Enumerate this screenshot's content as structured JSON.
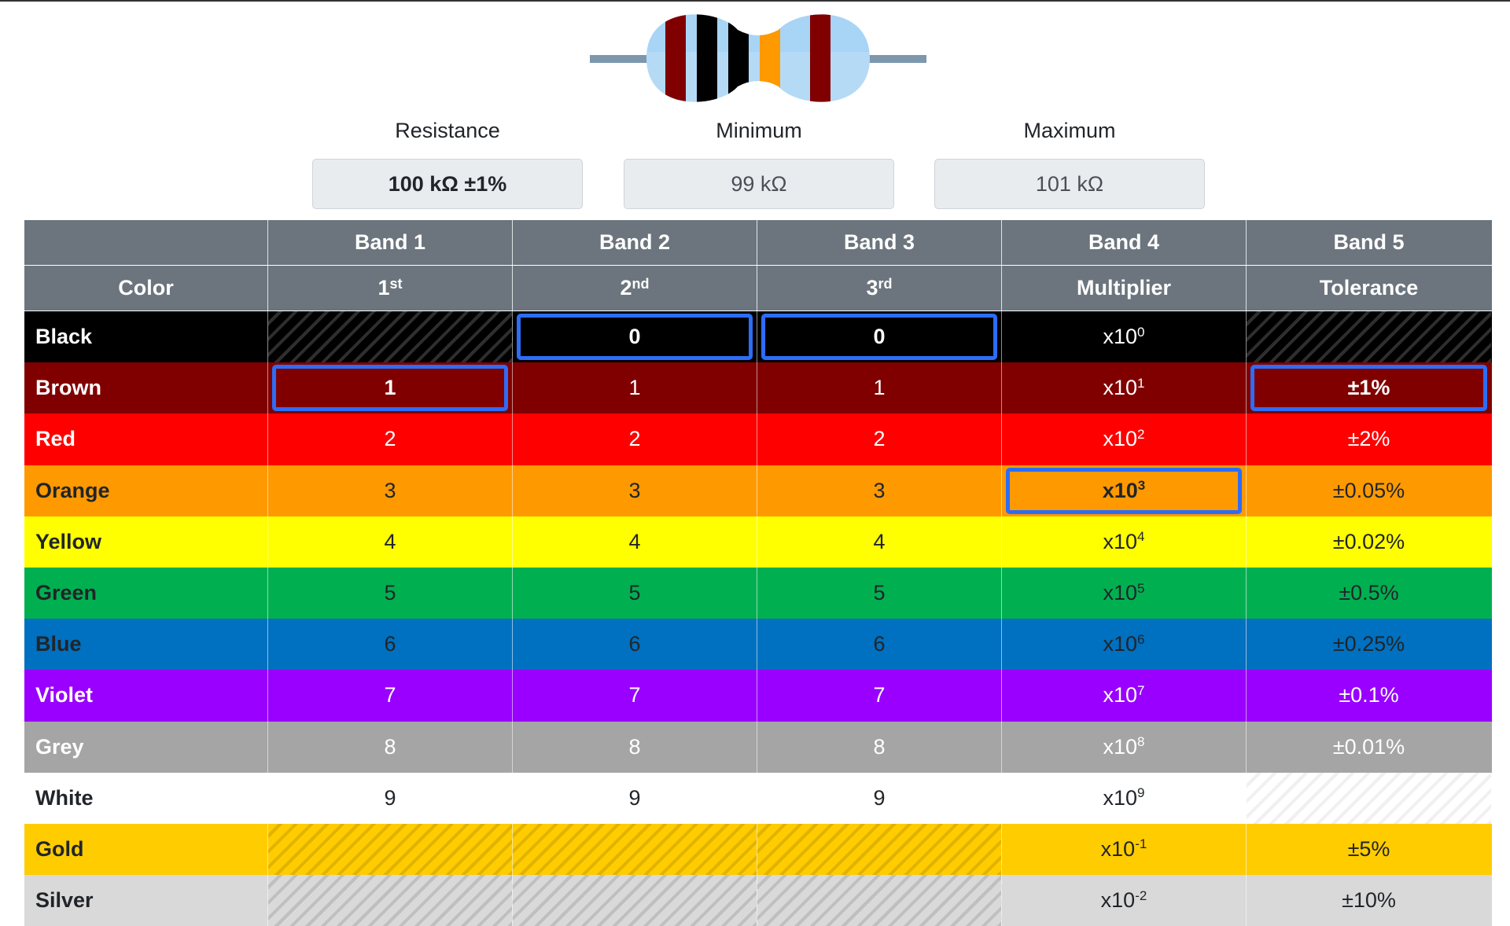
{
  "labels": {
    "resistance": "Resistance",
    "minimum": "Minimum",
    "maximum": "Maximum"
  },
  "values": {
    "resistance": "100 kΩ ±1%",
    "minimum": "99 kΩ",
    "maximum": "101 kΩ"
  },
  "resistor": {
    "body_color": "#a8d4f5",
    "lead_color": "#7d98ac",
    "bands": [
      "#800000",
      "#000000",
      "#000000",
      "#ff9900",
      "#800000"
    ]
  },
  "header": {
    "row1": [
      "",
      "Band 1",
      "Band 2",
      "Band 3",
      "Band 4",
      "Band 5"
    ],
    "row2": [
      {
        "base": "Color",
        "sup": ""
      },
      {
        "base": "1",
        "sup": "st"
      },
      {
        "base": "2",
        "sup": "nd"
      },
      {
        "base": "3",
        "sup": "rd"
      },
      {
        "base": "Multiplier",
        "sup": ""
      },
      {
        "base": "Tolerance",
        "sup": ""
      }
    ]
  },
  "rows": [
    {
      "name": "Black",
      "bg": "#000000",
      "fg": "#ffffff",
      "d1": "",
      "d2": "0",
      "d3": "0",
      "mult_exp": "0",
      "tol": ""
    },
    {
      "name": "Brown",
      "bg": "#800000",
      "fg": "#ffffff",
      "d1": "1",
      "d2": "1",
      "d3": "1",
      "mult_exp": "1",
      "tol": "±1%"
    },
    {
      "name": "Red",
      "bg": "#ff0000",
      "fg": "#ffffff",
      "d1": "2",
      "d2": "2",
      "d3": "2",
      "mult_exp": "2",
      "tol": "±2%"
    },
    {
      "name": "Orange",
      "bg": "#ff9900",
      "fg": "#212529",
      "d1": "3",
      "d2": "3",
      "d3": "3",
      "mult_exp": "3",
      "tol": "±0.05%"
    },
    {
      "name": "Yellow",
      "bg": "#ffff00",
      "fg": "#212529",
      "d1": "4",
      "d2": "4",
      "d3": "4",
      "mult_exp": "4",
      "tol": "±0.02%"
    },
    {
      "name": "Green",
      "bg": "#00b050",
      "fg": "#212529",
      "d1": "5",
      "d2": "5",
      "d3": "5",
      "mult_exp": "5",
      "tol": "±0.5%"
    },
    {
      "name": "Blue",
      "bg": "#0070c0",
      "fg": "#212529",
      "d1": "6",
      "d2": "6",
      "d3": "6",
      "mult_exp": "6",
      "tol": "±0.25%"
    },
    {
      "name": "Violet",
      "bg": "#9900ff",
      "fg": "#ffffff",
      "d1": "7",
      "d2": "7",
      "d3": "7",
      "mult_exp": "7",
      "tol": "±0.1%"
    },
    {
      "name": "Grey",
      "bg": "#a5a5a5",
      "fg": "#ffffff",
      "d1": "8",
      "d2": "8",
      "d3": "8",
      "mult_exp": "8",
      "tol": "±0.01%"
    },
    {
      "name": "White",
      "bg": "#ffffff",
      "fg": "#212529",
      "d1": "9",
      "d2": "9",
      "d3": "9",
      "mult_exp": "9",
      "tol": ""
    },
    {
      "name": "Gold",
      "bg": "#ffcc00",
      "fg": "#212529",
      "d1": "",
      "d2": "",
      "d3": "",
      "mult_exp": "-1",
      "tol": "±5%"
    },
    {
      "name": "Silver",
      "bg": "#d9d9d9",
      "fg": "#212529",
      "d1": "",
      "d2": "",
      "d3": "",
      "mult_exp": "-2",
      "tol": "±10%"
    }
  ],
  "mult_base": "x10",
  "selection": {
    "accent": "#2d6df6",
    "band1": "Brown",
    "band2": "Black",
    "band3": "Black",
    "multiplier": "Orange",
    "tolerance": "Brown"
  }
}
